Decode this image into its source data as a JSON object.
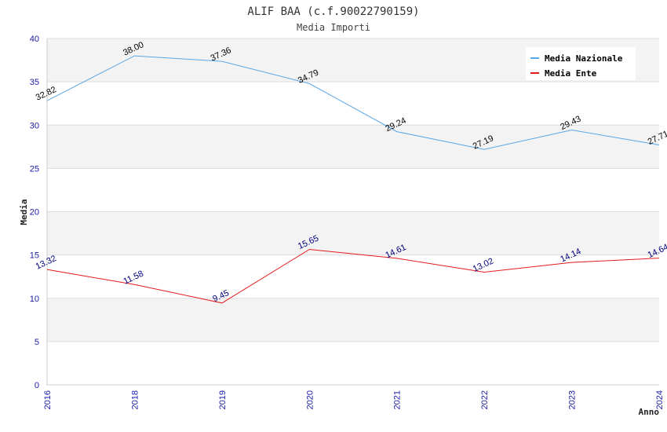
{
  "chart_data": {
    "type": "line",
    "title": "ALIF BAA (c.f.90022790159)",
    "subtitle": "Media Importi",
    "xlabel": "Anno",
    "ylabel": "Media",
    "ylim": [
      0,
      40
    ],
    "yticks": [
      0,
      5,
      10,
      15,
      20,
      25,
      30,
      35,
      40
    ],
    "categories": [
      "2016",
      "2018",
      "2019",
      "2020",
      "2021",
      "2022",
      "2023",
      "2024"
    ],
    "grid": true,
    "legend_position": "top-right",
    "series": [
      {
        "name": "Media Nazionale",
        "color": "#5aa7e6",
        "label_color": "#000000",
        "values": [
          32.82,
          38.0,
          37.36,
          34.79,
          29.24,
          27.19,
          29.43,
          27.71
        ],
        "labels": [
          "32.82",
          "38.00",
          "37.36",
          "34.79",
          "29.24",
          "27.19",
          "29.43",
          "27.71"
        ]
      },
      {
        "name": "Media Ente",
        "color": "#e31a1c",
        "label_color": "#000080",
        "values": [
          13.32,
          11.58,
          9.45,
          15.65,
          14.61,
          13.02,
          14.14,
          14.64
        ],
        "labels": [
          "13.32",
          "11.58",
          "9.45",
          "15.65",
          "14.61",
          "13.02",
          "14.14",
          "14.64"
        ]
      }
    ]
  }
}
